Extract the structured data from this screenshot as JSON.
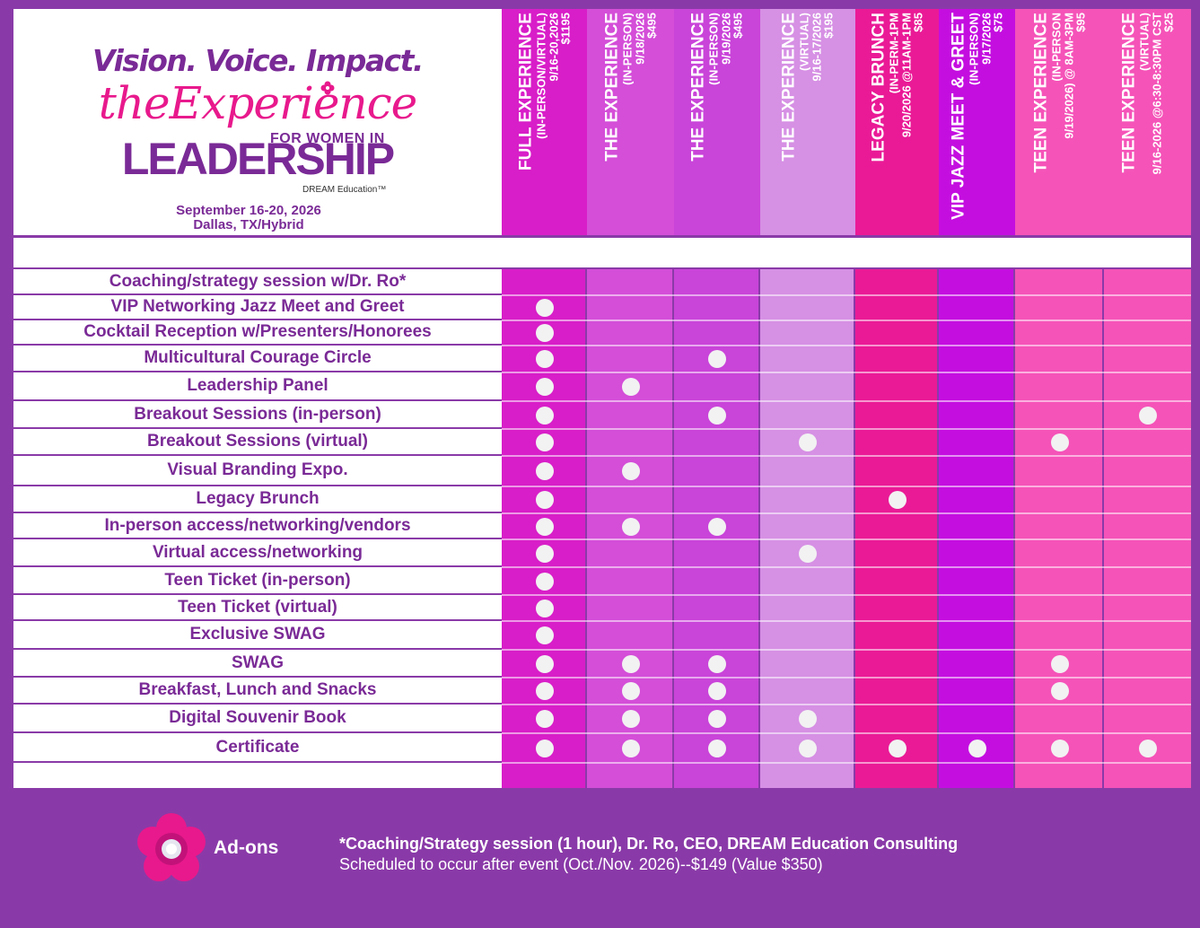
{
  "logo": {
    "tagline": "Vision. Voice. Impact.",
    "script_title": "theExperience",
    "for_women": "FOR WOMEN IN",
    "leadership": "LEADERSHIP",
    "brand": "DREAM Education™"
  },
  "event": {
    "dates": "September 16-20, 2026",
    "location": "Dallas, TX/Hybrid"
  },
  "colors": {
    "background": "#8a3aa8",
    "label_text": "#7a2a96",
    "accent_pink": "#e8198c"
  },
  "columns": [
    {
      "title": "FULL  EXPERIENCE",
      "detail": "(IN-PERSON/VIRTUAL)",
      "date": "9/16-20,2026",
      "price": "$1195",
      "header_color": "#d81ec8",
      "grid_color": "#d81ec8"
    },
    {
      "title": "THE EXPERIENCE",
      "detail": "(IN-PERSON)",
      "date": "9/18/2026",
      "price": "$495",
      "header_color": "#d44ed8",
      "grid_color": "#d44ed8"
    },
    {
      "title": "THE EXPERIENCE",
      "detail": "(IN-PERSON)",
      "date": "9/19/2026",
      "price": "$495",
      "header_color": "#c944d9",
      "grid_color": "#c944d9"
    },
    {
      "title": "THE EXPERIENCE",
      "detail": "(VIRTUAL)",
      "date": "9/16-17/2026",
      "price": "$195",
      "header_color": "#d690e4",
      "grid_color": "#d690e4"
    },
    {
      "title": "LEGACY BRUNCH",
      "detail": "(IN-PERM-1PM",
      "date": "9/20/2026 @11AM-1PM",
      "price": "$85",
      "header_color": "#ea1a96",
      "grid_color": "#ea1a96"
    },
    {
      "title": "VIP JAZZ MEET & GREET",
      "detail": "(IN-PERSON)",
      "date": "9/17/2026",
      "price": "$75",
      "header_color": "#c40ee0",
      "grid_color": "#c40ee0"
    },
    {
      "title": "TEEN EXPERIENCE",
      "detail": "(IN-PERSON",
      "date": "9/19/2026) @ 8AM-3PM",
      "price": "$95",
      "header_color": "#f553b8",
      "grid_color": "#f553b8"
    },
    {
      "title": "TEEN EXPERIENCE",
      "detail": "(VIRTUAL)",
      "date": "9/16-2026 @6:30-8:30PM CST",
      "price": "$25",
      "header_color": "#f553b8",
      "grid_color": "#f553b8"
    }
  ],
  "rows": [
    {
      "label": "Coaching/strategy session w/Dr. Ro*",
      "included": []
    },
    {
      "label": "VIP Networking Jazz Meet and Greet",
      "included": [
        0
      ]
    },
    {
      "label": "Cocktail Reception w/Presenters/Honorees",
      "included": [
        0
      ]
    },
    {
      "label": "Multicultural Courage Circle",
      "included": [
        0,
        2
      ]
    },
    {
      "label": "Leadership Panel",
      "included": [
        0,
        1
      ]
    },
    {
      "label": "Breakout Sessions (in-person)",
      "included": [
        0,
        2,
        7
      ]
    },
    {
      "label": "Breakout Sessions (virtual)",
      "included": [
        0,
        3,
        6
      ]
    },
    {
      "label": "Visual Branding Expo.",
      "included": [
        0,
        1
      ]
    },
    {
      "label": "Legacy Brunch",
      "included": [
        0,
        4
      ]
    },
    {
      "label": "In-person access/networking/vendors",
      "included": [
        0,
        1,
        2
      ]
    },
    {
      "label": "Virtual access/networking",
      "included": [
        0,
        3
      ]
    },
    {
      "label": "Teen Ticket (in-person)",
      "included": [
        0
      ]
    },
    {
      "label": "Teen Ticket (virtual)",
      "included": [
        0
      ]
    },
    {
      "label": "Exclusive SWAG",
      "included": [
        0
      ]
    },
    {
      "label": "SWAG",
      "included": [
        0,
        1,
        2,
        6
      ]
    },
    {
      "label": "Breakfast, Lunch and Snacks",
      "included": [
        0,
        1,
        2,
        6
      ]
    },
    {
      "label": "Digital Souvenir Book",
      "included": [
        0,
        1,
        2,
        3
      ]
    },
    {
      "label": "Certificate",
      "included": [
        0,
        1,
        2,
        3,
        4,
        5,
        6,
        7
      ]
    }
  ],
  "addons": {
    "label": "Ad-ons",
    "line1": "*Coaching/Strategy session (1 hour), Dr. Ro, CEO, DREAM Education Consulting",
    "line2": "Scheduled to occur after event (Oct./Nov. 2026)--$149 (Value $350)"
  }
}
